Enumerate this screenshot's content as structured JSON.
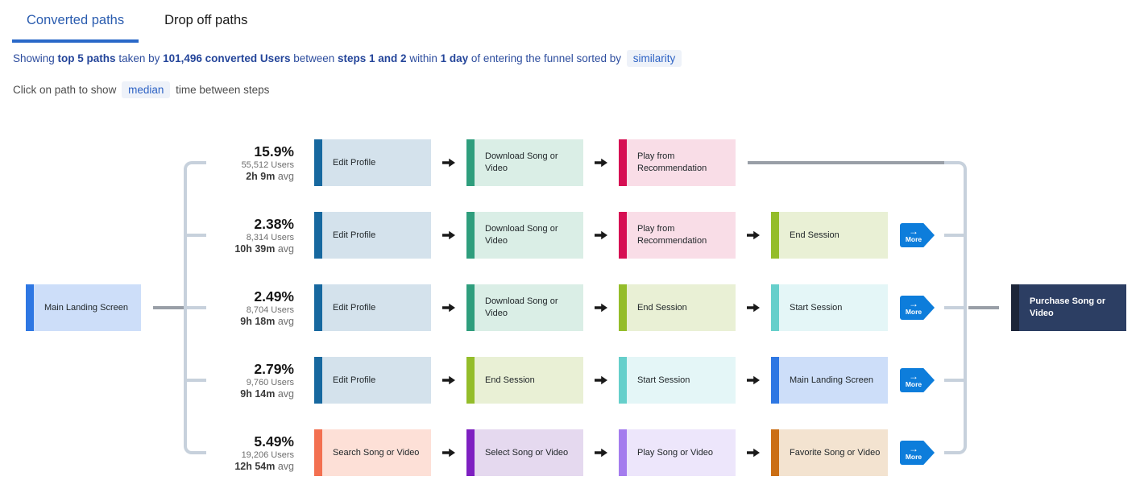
{
  "tabs": {
    "converted": {
      "label": "Converted paths",
      "active": true
    },
    "dropoff": {
      "label": "Drop off paths",
      "active": false
    },
    "active_text_color": "#2a5caf",
    "underline_color": "#2968c8"
  },
  "summary_line": {
    "segments": [
      {
        "text": "Showing ",
        "style": "normal"
      },
      {
        "text": "top 5 paths",
        "style": "bold"
      },
      {
        "text": " taken by ",
        "style": "normal"
      },
      {
        "text": "101,496 converted Users",
        "style": "bold"
      },
      {
        "text": " between ",
        "style": "normal"
      },
      {
        "text": "steps 1 and 2",
        "style": "bold"
      },
      {
        "text": " within ",
        "style": "normal"
      },
      {
        "text": "1 day",
        "style": "bold"
      },
      {
        "text": " of entering the funnel sorted by ",
        "style": "normal"
      },
      {
        "text": "similarity",
        "style": "pill"
      }
    ]
  },
  "hint_line": {
    "segments": [
      {
        "text": "Click on path to show ",
        "style": "normal"
      },
      {
        "text": "median",
        "style": "pill"
      },
      {
        "text": " time between steps",
        "style": "normal"
      }
    ]
  },
  "diagram": {
    "start_node": {
      "label": "Main Landing Screen"
    },
    "end_node": {
      "label": "Purchase Song or Video",
      "border": "#1d2639",
      "fill": "#2c3e63",
      "text_color": "#ffffff"
    },
    "more_button": {
      "label": "More",
      "arrow": "→",
      "color": "#0d7ddb"
    },
    "connector_colors": {
      "light": "#c7d1dc",
      "dark": "#999fa7"
    },
    "event_colors": {
      "Main Landing Screen": {
        "border": "#2e77e3",
        "fill": "#cddef9"
      },
      "Edit Profile": {
        "border": "#17689f",
        "fill": "#d4e2ec"
      },
      "Download Song or Video": {
        "border": "#2f9e7d",
        "fill": "#daeee6"
      },
      "Play from Recommendation": {
        "border": "#d60f53",
        "fill": "#f9dde7"
      },
      "End Session": {
        "border": "#94bd2a",
        "fill": "#e9f0d5"
      },
      "Start Session": {
        "border": "#66cfcb",
        "fill": "#e4f6f7"
      },
      "Search Song or Video": {
        "border": "#f37050",
        "fill": "#fde0d7"
      },
      "Select Song or Video": {
        "border": "#7e20c1",
        "fill": "#e5d9ef"
      },
      "Play Song or Video": {
        "border": "#a47cee",
        "fill": "#ede6fb"
      },
      "Favorite Song or Video": {
        "border": "#cb6e14",
        "fill": "#f3e3d0"
      }
    },
    "paths": [
      {
        "percent": "15.9%",
        "users": "55,512 Users",
        "avg": "2h 9m",
        "avg_suffix": " avg",
        "steps": [
          "Edit Profile",
          "Download Song or Video",
          "Play from Recommendation"
        ],
        "more": false
      },
      {
        "percent": "2.38%",
        "users": "8,314 Users",
        "avg": "10h 39m",
        "avg_suffix": " avg",
        "steps": [
          "Edit Profile",
          "Download Song or Video",
          "Play from Recommendation",
          "End Session"
        ],
        "more": true
      },
      {
        "percent": "2.49%",
        "users": "8,704 Users",
        "avg": "9h 18m",
        "avg_suffix": " avg",
        "steps": [
          "Edit Profile",
          "Download Song or Video",
          "End Session",
          "Start Session"
        ],
        "more": true
      },
      {
        "percent": "2.79%",
        "users": "9,760 Users",
        "avg": "9h 14m",
        "avg_suffix": " avg",
        "steps": [
          "Edit Profile",
          "End Session",
          "Start Session",
          "Main Landing Screen"
        ],
        "more": true
      },
      {
        "percent": "5.49%",
        "users": "19,206 Users",
        "avg": "12h 54m",
        "avg_suffix": " avg",
        "steps": [
          "Search Song or Video",
          "Select Song or Video",
          "Play Song or Video",
          "Favorite Song or Video"
        ],
        "more": true
      }
    ]
  }
}
